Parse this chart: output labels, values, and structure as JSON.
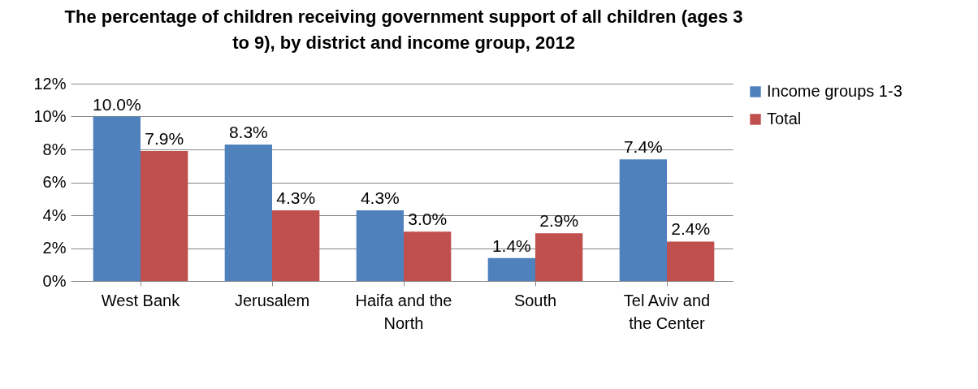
{
  "chart_data": {
    "type": "bar",
    "title": "The percentage of children receiving government support of all children (ages 3 to 9), by district and income group, 2012",
    "categories": [
      "West Bank",
      "Jerusalem",
      "Haifa and the North",
      "South",
      "Tel Aviv and the Center"
    ],
    "series": [
      {
        "name": "Income groups 1-3",
        "color": "#4f81bd",
        "values": [
          10.0,
          8.3,
          4.3,
          1.4,
          7.4
        ],
        "value_labels": [
          "10.0%",
          "8.3%",
          "4.3%",
          "1.4%",
          "7.4%"
        ]
      },
      {
        "name": "Total",
        "color": "#c0504d",
        "values": [
          7.9,
          4.3,
          3.0,
          2.9,
          2.4
        ],
        "value_labels": [
          "7.9%",
          "4.3%",
          "3.0%",
          "2.9%",
          "2.4%"
        ]
      }
    ],
    "ylim": [
      0,
      12
    ],
    "yticks": [
      {
        "value": 0,
        "label": "0%"
      },
      {
        "value": 2,
        "label": "2%"
      },
      {
        "value": 4,
        "label": "4%"
      },
      {
        "value": 6,
        "label": "6%"
      },
      {
        "value": 8,
        "label": "8%"
      },
      {
        "value": 10,
        "label": "10%"
      },
      {
        "value": 12,
        "label": "12%"
      }
    ],
    "grid": "y",
    "legend": "right"
  }
}
